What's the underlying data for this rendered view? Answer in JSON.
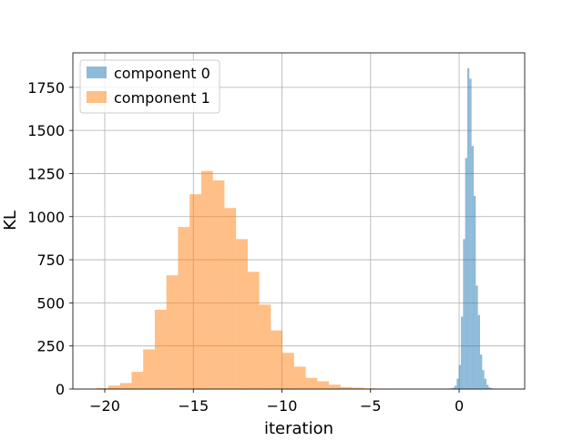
{
  "chart_data": {
    "type": "bar",
    "title": "",
    "xlabel": "iteration",
    "ylabel": "KL",
    "xlim": [
      -21.8,
      3.7
    ],
    "ylim": [
      0,
      1950
    ],
    "grid": true,
    "legend_position": "top-left",
    "xticks": [
      -20,
      -15,
      -10,
      -5,
      0
    ],
    "xtick_labels": [
      "−20",
      "−15",
      "−10",
      "−5",
      "0"
    ],
    "yticks": [
      0,
      250,
      500,
      750,
      1000,
      1250,
      1500,
      1750
    ],
    "ytick_labels": [
      "0",
      "250",
      "500",
      "750",
      "1000",
      "1250",
      "1500",
      "1750"
    ],
    "series": [
      {
        "name": "component 0",
        "color": "#1f77b4",
        "opacity": 0.5,
        "bin_width": 0.12,
        "bin_starts": [
          -0.5,
          -0.38,
          -0.26,
          -0.14,
          -0.02,
          0.1,
          0.22,
          0.34,
          0.46,
          0.58,
          0.7,
          0.82,
          0.94,
          1.06,
          1.18,
          1.3,
          1.42,
          1.54,
          1.66,
          1.78,
          1.9,
          2.02
        ],
        "counts": [
          4,
          8,
          20,
          60,
          140,
          420,
          870,
          1340,
          1860,
          1800,
          1410,
          1120,
          600,
          430,
          200,
          110,
          60,
          25,
          10,
          5,
          2,
          1
        ]
      },
      {
        "name": "component 1",
        "color": "#ff7f0e",
        "opacity": 0.5,
        "bin_width": 0.655,
        "bin_starts": [
          -20.45,
          -19.795,
          -19.14,
          -18.485,
          -17.83,
          -17.175,
          -16.52,
          -15.865,
          -15.21,
          -14.555,
          -13.9,
          -13.245,
          -12.59,
          -11.935,
          -11.28,
          -10.625,
          -9.97,
          -9.315,
          -8.66,
          -8.005,
          -7.35,
          -6.695,
          -6.04,
          -5.385,
          -4.73,
          -4.075
        ],
        "counts": [
          5,
          20,
          35,
          100,
          230,
          460,
          660,
          940,
          1130,
          1265,
          1210,
          1050,
          870,
          680,
          490,
          340,
          210,
          130,
          65,
          45,
          25,
          12,
          8,
          4,
          2,
          1
        ]
      }
    ]
  }
}
